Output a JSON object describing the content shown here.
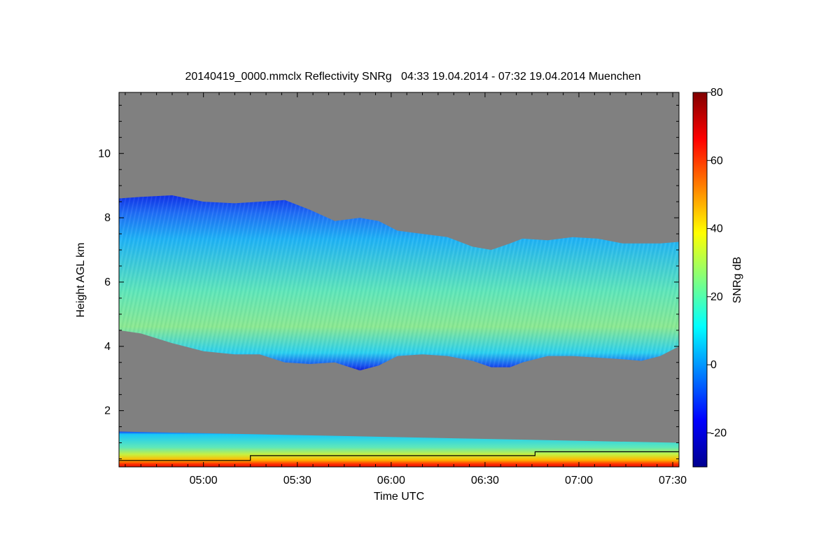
{
  "chart_data": {
    "type": "heatmap",
    "title": "20140419_0000.mmclx Reflectivity SNRg   04:33 19.04.2014 - 07:32 19.04.2014 Muenchen",
    "xlabel": "Time UTC",
    "ylabel": "Height AGL km",
    "x_range_minutes_utc": [
      273,
      452
    ],
    "x_ticks": [
      {
        "label": "05:00",
        "minutes": 300
      },
      {
        "label": "05:30",
        "minutes": 330
      },
      {
        "label": "06:00",
        "minutes": 360
      },
      {
        "label": "06:30",
        "minutes": 390
      },
      {
        "label": "07:00",
        "minutes": 420
      },
      {
        "label": "07:30",
        "minutes": 450
      }
    ],
    "y_range_km": [
      0.25,
      11.9
    ],
    "y_ticks": [
      {
        "label": "2",
        "value": 2
      },
      {
        "label": "4",
        "value": 4
      },
      {
        "label": "6",
        "value": 6
      },
      {
        "label": "8",
        "value": 8
      },
      {
        "label": "10",
        "value": 10
      }
    ],
    "colorbar": {
      "label": "SNRg dB",
      "range": [
        -30,
        80
      ],
      "ticks": [
        {
          "label": "-20",
          "value": -20
        },
        {
          "label": "0",
          "value": 0
        },
        {
          "label": "20",
          "value": 20
        },
        {
          "label": "40",
          "value": 40
        },
        {
          "label": "60",
          "value": 60
        },
        {
          "label": "80",
          "value": 80
        }
      ],
      "colormap": "jet"
    },
    "no_data_color": "#808080",
    "cloud_layer": {
      "minutes": [
        273,
        280,
        290,
        300,
        310,
        318,
        326,
        334,
        342,
        350,
        356,
        362,
        370,
        378,
        386,
        392,
        398,
        402,
        410,
        418,
        426,
        434,
        440,
        446,
        452
      ],
      "top_km": [
        8.6,
        8.65,
        8.7,
        8.5,
        8.45,
        8.5,
        8.55,
        8.25,
        7.9,
        8.0,
        7.9,
        7.6,
        7.5,
        7.4,
        7.1,
        7.0,
        7.2,
        7.35,
        7.3,
        7.4,
        7.35,
        7.2,
        7.2,
        7.2,
        7.25
      ],
      "base_km": [
        4.5,
        4.4,
        4.1,
        3.85,
        3.75,
        3.75,
        3.5,
        3.45,
        3.5,
        3.25,
        3.4,
        3.7,
        3.75,
        3.7,
        3.55,
        3.35,
        3.35,
        3.5,
        3.7,
        3.7,
        3.65,
        3.6,
        3.55,
        3.7,
        4.0
      ],
      "core_snr_db": 30
    },
    "low_layer": {
      "top_km": 1.35,
      "top_km_end": 1.0,
      "snr_db": [
        10,
        25,
        45,
        60
      ]
    },
    "boundary_line": {
      "segments": [
        {
          "from_min": 273,
          "to_min": 315,
          "km": 0.45
        },
        {
          "from_min": 315,
          "to_min": 406,
          "km": 0.6
        },
        {
          "from_min": 406,
          "to_min": 452,
          "km": 0.72
        }
      ]
    }
  }
}
